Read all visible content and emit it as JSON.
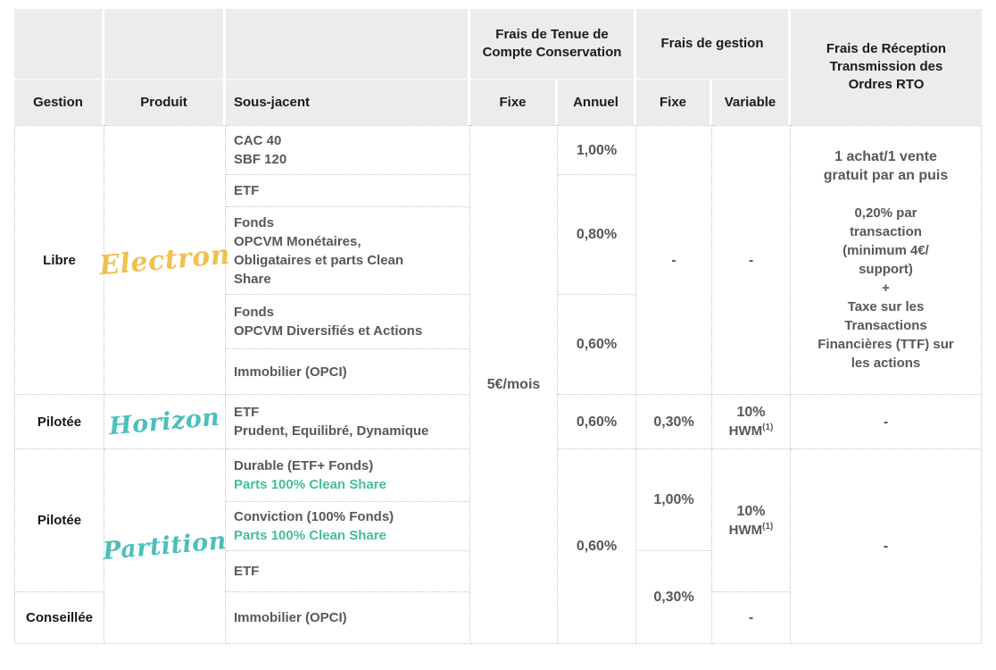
{
  "colors": {
    "header_bg": "#ECECEC",
    "body_text": "#58585A",
    "heading_text": "#1B1B1B",
    "electron_yellow": "#F2C050",
    "horizon_partition_teal": "#4CBFBC",
    "clean_share_green": "#44BD9D",
    "grid_border": "#C5C5C5"
  },
  "header": {
    "gestion": "Gestion",
    "produit": "Produit",
    "sous_jacent": "Sous-jacent",
    "tenue_group_line1": "Frais de Tenue de",
    "tenue_group_line2": "Compte Conservation",
    "tenue_fixe": "Fixe",
    "tenue_annuel": "Annuel",
    "gestion_group": "Frais de gestion",
    "gestion_fixe": "Fixe",
    "gestion_variable": "Variable",
    "rto_line1": "Frais  de Réception",
    "rto_line2": "Transmission des",
    "rto_line3": "Ordres RTO"
  },
  "gestion_col": {
    "libre": "Libre",
    "pilotee_horizon": "Pilotée",
    "pilotee_partition": "Pilotée",
    "conseillee": "Conseillée"
  },
  "produit_col": {
    "electron": "Electron",
    "horizon": "Horizon",
    "partition": "Partition"
  },
  "sous_jacent_col": {
    "cac": [
      "CAC 40",
      "SBF 120"
    ],
    "etf_electron": "ETF",
    "fonds_monetaires": [
      "Fonds",
      "OPCVM Monétaires,",
      "Obligataires et parts Clean",
      "Share"
    ],
    "fonds_diversifies": [
      "Fonds",
      "OPCVM Diversifiés et Actions"
    ],
    "immobilier_electron": "Immobilier (OPCI)",
    "etf_horizon": [
      "ETF",
      "Prudent, Equilibré, Dynamique"
    ],
    "durable": {
      "main": "Durable (ETF+ Fonds)",
      "highlight": "Parts 100% Clean Share"
    },
    "conviction": {
      "main": "Conviction (100% Fonds)",
      "highlight": "Parts 100% Clean Share"
    },
    "etf_partition": "ETF",
    "immobilier_conseillee": "Immobilier (OPCI)"
  },
  "tenue": {
    "fixe_all": "5€/mois",
    "annuel_cac": "1,00%",
    "annuel_etf_monetaires": "0,80%",
    "annuel_diversifies_immo": "0,60%",
    "annuel_horizon": "0,60%",
    "annuel_partition": "0,60%"
  },
  "frais_gestion": {
    "fixe_electron": "-",
    "variable_electron": "-",
    "fixe_horizon": "0,30%",
    "variable_horizon": {
      "pct": "10%",
      "hwm": "HWM",
      "sup": "(1)"
    },
    "fixe_partition_haut": "1,00%",
    "fixe_partition_bas": "0,30%",
    "variable_partition": {
      "pct": "10%",
      "hwm": "HWM",
      "sup": "(1)"
    },
    "variable_conseillee": "-"
  },
  "rto": {
    "electron_intro": [
      "1 achat/1 vente",
      "gratuit par an puis"
    ],
    "electron_details": [
      "0,20% par",
      "transaction",
      "(minimum 4€/",
      "support)",
      "+",
      "Taxe sur les",
      "Transactions",
      "Financières (TTF) sur",
      "les actions"
    ],
    "horizon": "-",
    "partition": "-"
  }
}
